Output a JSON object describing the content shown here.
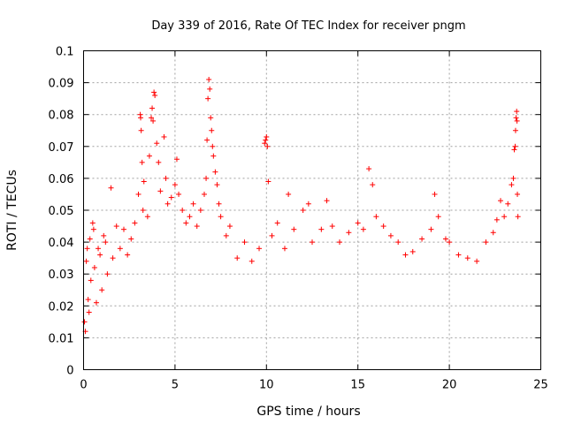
{
  "chart_data": {
    "type": "scatter",
    "title": "Day 339 of 2016, Rate Of TEC Index for receiver pngm",
    "xlabel": "GPS time / hours",
    "ylabel": "ROTI / TECUs",
    "xlim": [
      0,
      25
    ],
    "ylim": [
      0,
      0.1
    ],
    "xticks": [
      0,
      5,
      10,
      15,
      20,
      25
    ],
    "xtick_labels": [
      "0",
      "5",
      "10",
      "15",
      "20",
      "25"
    ],
    "yticks": [
      0,
      0.01,
      0.02,
      0.03,
      0.04,
      0.05,
      0.06,
      0.07,
      0.08,
      0.09,
      0.1
    ],
    "ytick_labels": [
      "0",
      "0.01",
      "0.02",
      "0.03",
      "0.04",
      "0.05",
      "0.06",
      "0.07",
      "0.08",
      "0.09",
      "0.1"
    ],
    "grid": true,
    "marker": "+",
    "color": "#ff0000",
    "series": [
      {
        "name": "ROTI",
        "points": [
          [
            0.05,
            0.015
          ],
          [
            0.1,
            0.012
          ],
          [
            0.15,
            0.034
          ],
          [
            0.2,
            0.038
          ],
          [
            0.25,
            0.022
          ],
          [
            0.3,
            0.018
          ],
          [
            0.35,
            0.041
          ],
          [
            0.4,
            0.028
          ],
          [
            0.5,
            0.046
          ],
          [
            0.55,
            0.044
          ],
          [
            0.6,
            0.032
          ],
          [
            0.7,
            0.021
          ],
          [
            0.8,
            0.038
          ],
          [
            0.9,
            0.036
          ],
          [
            1.0,
            0.025
          ],
          [
            1.1,
            0.042
          ],
          [
            1.2,
            0.04
          ],
          [
            1.3,
            0.03
          ],
          [
            1.5,
            0.057
          ],
          [
            1.6,
            0.035
          ],
          [
            1.8,
            0.045
          ],
          [
            2.0,
            0.038
          ],
          [
            2.2,
            0.044
          ],
          [
            2.4,
            0.036
          ],
          [
            2.6,
            0.041
          ],
          [
            2.8,
            0.046
          ],
          [
            3.0,
            0.055
          ],
          [
            3.1,
            0.08
          ],
          [
            3.12,
            0.079
          ],
          [
            3.15,
            0.075
          ],
          [
            3.2,
            0.065
          ],
          [
            3.25,
            0.05
          ],
          [
            3.3,
            0.059
          ],
          [
            3.5,
            0.048
          ],
          [
            3.6,
            0.067
          ],
          [
            3.7,
            0.079
          ],
          [
            3.75,
            0.082
          ],
          [
            3.8,
            0.078
          ],
          [
            3.85,
            0.087
          ],
          [
            3.9,
            0.086
          ],
          [
            4.0,
            0.071
          ],
          [
            4.1,
            0.065
          ],
          [
            4.2,
            0.056
          ],
          [
            4.4,
            0.073
          ],
          [
            4.5,
            0.06
          ],
          [
            4.6,
            0.052
          ],
          [
            4.8,
            0.054
          ],
          [
            5.0,
            0.058
          ],
          [
            5.1,
            0.066
          ],
          [
            5.2,
            0.055
          ],
          [
            5.4,
            0.05
          ],
          [
            5.6,
            0.046
          ],
          [
            5.8,
            0.048
          ],
          [
            6.0,
            0.052
          ],
          [
            6.2,
            0.045
          ],
          [
            6.4,
            0.05
          ],
          [
            6.6,
            0.055
          ],
          [
            6.7,
            0.06
          ],
          [
            6.75,
            0.072
          ],
          [
            6.8,
            0.085
          ],
          [
            6.85,
            0.091
          ],
          [
            6.9,
            0.088
          ],
          [
            6.95,
            0.079
          ],
          [
            7.0,
            0.075
          ],
          [
            7.05,
            0.07
          ],
          [
            7.1,
            0.067
          ],
          [
            7.2,
            0.062
          ],
          [
            7.3,
            0.058
          ],
          [
            7.4,
            0.052
          ],
          [
            7.5,
            0.048
          ],
          [
            7.8,
            0.042
          ],
          [
            8.0,
            0.045
          ],
          [
            8.4,
            0.035
          ],
          [
            8.8,
            0.04
          ],
          [
            9.2,
            0.034
          ],
          [
            9.6,
            0.038
          ],
          [
            9.9,
            0.071
          ],
          [
            9.95,
            0.072
          ],
          [
            10.0,
            0.073
          ],
          [
            10.05,
            0.07
          ],
          [
            10.1,
            0.059
          ],
          [
            10.3,
            0.042
          ],
          [
            10.6,
            0.046
          ],
          [
            11.0,
            0.038
          ],
          [
            11.2,
            0.055
          ],
          [
            11.5,
            0.044
          ],
          [
            12.0,
            0.05
          ],
          [
            12.3,
            0.052
          ],
          [
            12.5,
            0.04
          ],
          [
            13.0,
            0.044
          ],
          [
            13.3,
            0.053
          ],
          [
            13.6,
            0.045
          ],
          [
            14.0,
            0.04
          ],
          [
            14.5,
            0.043
          ],
          [
            15.0,
            0.046
          ],
          [
            15.3,
            0.044
          ],
          [
            15.6,
            0.063
          ],
          [
            15.8,
            0.058
          ],
          [
            16.0,
            0.048
          ],
          [
            16.4,
            0.045
          ],
          [
            16.8,
            0.042
          ],
          [
            17.2,
            0.04
          ],
          [
            17.6,
            0.036
          ],
          [
            18.0,
            0.037
          ],
          [
            18.5,
            0.041
          ],
          [
            19.0,
            0.044
          ],
          [
            19.2,
            0.055
          ],
          [
            19.4,
            0.048
          ],
          [
            19.8,
            0.041
          ],
          [
            20.0,
            0.04
          ],
          [
            20.5,
            0.036
          ],
          [
            21.0,
            0.035
          ],
          [
            21.5,
            0.034
          ],
          [
            22.0,
            0.04
          ],
          [
            22.4,
            0.043
          ],
          [
            22.6,
            0.047
          ],
          [
            22.8,
            0.053
          ],
          [
            23.0,
            0.048
          ],
          [
            23.2,
            0.052
          ],
          [
            23.4,
            0.058
          ],
          [
            23.5,
            0.06
          ],
          [
            23.55,
            0.069
          ],
          [
            23.6,
            0.07
          ],
          [
            23.62,
            0.075
          ],
          [
            23.65,
            0.079
          ],
          [
            23.68,
            0.081
          ],
          [
            23.7,
            0.078
          ],
          [
            23.72,
            0.055
          ],
          [
            23.75,
            0.048
          ]
        ]
      }
    ]
  }
}
